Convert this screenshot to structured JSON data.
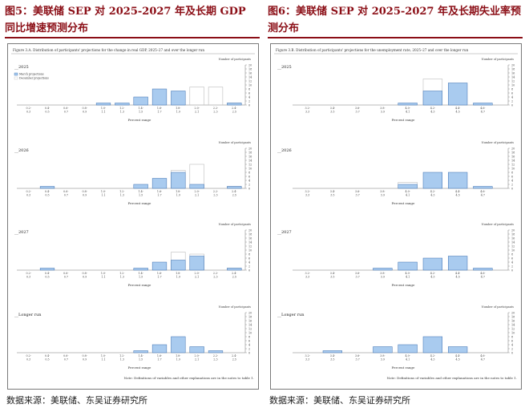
{
  "left": {
    "title": "图5：美联储 SEP 对 2025-2027 年及长期 GDP 同比增速预测分布",
    "figure_caption": "Figure 3.A. Distribution of participants' projections for the change in real GDP, 2025–27 and over the longer run",
    "number_label": "Number of participants",
    "legend": [
      "March projections",
      "December projections"
    ],
    "xlabel": "Percent range",
    "note": "Note: Definitions of variables and other explanations are in the notes to table 1.",
    "source": "数据来源：美联储、东吴证券研究所"
  },
  "right": {
    "title": "图6：美联储 SEP 对 2025-2027 年及长期失业率预测分布",
    "figure_caption": "Figure 3.B. Distribution of participants' projections for the unemployment rate, 2025–27 and over the longer run",
    "number_label": "Number of participants",
    "xlabel": "Percent range",
    "note": "Note: Definitions of variables and other explanations are in the notes to table 1.",
    "source": "数据来源：美联储、东吴证券研究所"
  },
  "colors": {
    "march": "#a9cbef",
    "march_stroke": "#3b6fb0",
    "december_stroke": "#bdbdbd",
    "title": "#8b0e16"
  },
  "chart_data": [
    {
      "type": "bar",
      "title": "2025",
      "xlabel": "Percent range",
      "ylabel": "Number of participants",
      "ylim": [
        0,
        20
      ],
      "categories": [
        "0.2-0.3",
        "0.4-0.5",
        "0.6-0.7",
        "0.8-0.9",
        "1.0-1.1",
        "1.2-1.3",
        "1.4-1.5",
        "1.6-1.7",
        "1.8-1.9",
        "2.0-2.1",
        "2.2-2.3",
        "2.4-2.5"
      ],
      "series": [
        {
          "name": "March projections",
          "values": [
            0,
            0,
            0,
            0,
            1,
            1,
            4,
            8,
            7,
            0,
            0,
            1
          ]
        },
        {
          "name": "December projections",
          "values": [
            0,
            0,
            0,
            0,
            0,
            0,
            0,
            0,
            0,
            9,
            9,
            1
          ]
        }
      ]
    },
    {
      "type": "bar",
      "title": "2026",
      "xlabel": "Percent range",
      "ylabel": "Number of participants",
      "ylim": [
        0,
        20
      ],
      "categories": [
        "0.2-0.3",
        "0.4-0.5",
        "0.6-0.7",
        "0.8-0.9",
        "1.0-1.1",
        "1.2-1.3",
        "1.4-1.5",
        "1.6-1.7",
        "1.8-1.9",
        "2.0-2.1",
        "2.2-2.3",
        "2.4-2.5"
      ],
      "series": [
        {
          "name": "March projections",
          "values": [
            0,
            1,
            0,
            0,
            0,
            0,
            2,
            5,
            8,
            2,
            0,
            1
          ]
        },
        {
          "name": "December projections",
          "values": [
            0,
            0,
            0,
            0,
            0,
            0,
            0,
            0,
            9,
            12,
            0,
            1
          ]
        }
      ]
    },
    {
      "type": "bar",
      "title": "2027",
      "xlabel": "Percent range",
      "ylabel": "Number of participants",
      "ylim": [
        0,
        20
      ],
      "categories": [
        "0.2-0.3",
        "0.4-0.5",
        "0.6-0.7",
        "0.8-0.9",
        "1.0-1.1",
        "1.2-1.3",
        "1.4-1.5",
        "1.6-1.7",
        "1.8-1.9",
        "2.0-2.1",
        "2.2-2.3",
        "2.4-2.5"
      ],
      "series": [
        {
          "name": "March projections",
          "values": [
            0,
            1,
            0,
            0,
            0,
            0,
            1,
            4,
            5,
            7,
            0,
            1
          ]
        },
        {
          "name": "December projections",
          "values": [
            0,
            0,
            0,
            0,
            0,
            0,
            0,
            0,
            9,
            8,
            0,
            1
          ]
        }
      ]
    },
    {
      "type": "bar",
      "title": "Longer run",
      "xlabel": "Percent range",
      "ylabel": "Number of participants",
      "ylim": [
        0,
        20
      ],
      "categories": [
        "0.2-0.3",
        "0.4-0.5",
        "0.6-0.7",
        "0.8-0.9",
        "1.0-1.1",
        "1.2-1.3",
        "1.4-1.5",
        "1.6-1.7",
        "1.8-1.9",
        "2.0-2.1",
        "2.2-2.3",
        "2.4-2.5"
      ],
      "series": [
        {
          "name": "March projections",
          "values": [
            0,
            0,
            0,
            0,
            0,
            0,
            1,
            4,
            8,
            3,
            1,
            0
          ]
        },
        {
          "name": "December projections",
          "values": [
            0,
            0,
            0,
            0,
            0,
            0,
            0,
            0,
            0,
            0,
            0,
            0
          ]
        }
      ]
    },
    {
      "type": "bar",
      "title": "2025",
      "xlabel": "Percent range",
      "ylabel": "Number of participants",
      "ylim": [
        0,
        20
      ],
      "categories": [
        "3.2-3.3",
        "3.4-3.5",
        "3.6-3.7",
        "3.8-3.9",
        "4.0-4.1",
        "4.2-4.3",
        "4.4-4.5",
        "4.6-4.7"
      ],
      "series": [
        {
          "name": "March projections",
          "values": [
            0,
            0,
            0,
            0,
            1,
            7,
            11,
            1
          ]
        },
        {
          "name": "December projections",
          "values": [
            0,
            0,
            0,
            0,
            0,
            13,
            0,
            0
          ]
        }
      ]
    },
    {
      "type": "bar",
      "title": "2026",
      "xlabel": "Percent range",
      "ylabel": "Number of participants",
      "ylim": [
        0,
        20
      ],
      "categories": [
        "3.2-3.3",
        "3.4-3.5",
        "3.6-3.7",
        "3.8-3.9",
        "4.0-4.1",
        "4.2-4.3",
        "4.4-4.5",
        "4.6-4.7"
      ],
      "series": [
        {
          "name": "March projections",
          "values": [
            0,
            0,
            0,
            0,
            2,
            8,
            8,
            1
          ]
        },
        {
          "name": "December projections",
          "values": [
            0,
            0,
            0,
            0,
            3,
            0,
            0,
            0
          ]
        }
      ]
    },
    {
      "type": "bar",
      "title": "2027",
      "xlabel": "Percent range",
      "ylabel": "Number of participants",
      "ylim": [
        0,
        20
      ],
      "categories": [
        "3.2-3.3",
        "3.4-3.5",
        "3.6-3.7",
        "3.8-3.9",
        "4.0-4.1",
        "4.2-4.3",
        "4.4-4.5",
        "4.6-4.7"
      ],
      "series": [
        {
          "name": "March projections",
          "values": [
            0,
            0,
            0,
            1,
            4,
            6,
            7,
            1
          ]
        },
        {
          "name": "December projections",
          "values": [
            0,
            0,
            0,
            0,
            0,
            0,
            0,
            0
          ]
        }
      ]
    },
    {
      "type": "bar",
      "title": "Longer run",
      "xlabel": "Percent range",
      "ylabel": "Number of participants",
      "ylim": [
        0,
        20
      ],
      "categories": [
        "3.2-3.3",
        "3.4-3.5",
        "3.6-3.7",
        "3.8-3.9",
        "4.0-4.1",
        "4.2-4.3",
        "4.4-4.5",
        "4.6-4.7"
      ],
      "series": [
        {
          "name": "March projections",
          "values": [
            0,
            1,
            0,
            3,
            4,
            8,
            3,
            0
          ]
        },
        {
          "name": "December projections",
          "values": [
            0,
            0,
            0,
            0,
            0,
            0,
            0,
            0
          ]
        }
      ]
    }
  ]
}
